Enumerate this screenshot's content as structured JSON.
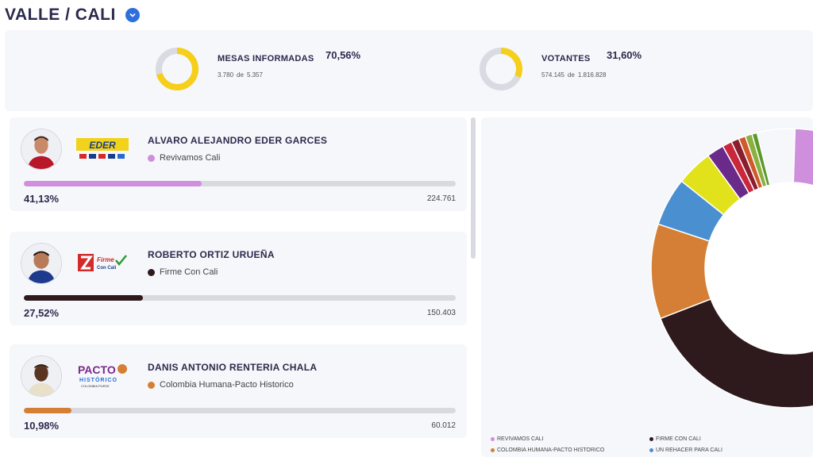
{
  "header": {
    "title": "VALLE / CALI"
  },
  "summary": {
    "mesas": {
      "label": "MESAS INFORMADAS",
      "pct": "70,56%",
      "reported": "3.780",
      "sep": "de",
      "total": "5.357",
      "fraction": 0.7056
    },
    "votantes": {
      "label": "VOTANTES",
      "pct": "31,60%",
      "reported": "574.145",
      "sep": "de",
      "total": "1.816.828",
      "fraction": 0.316
    }
  },
  "candidates": [
    {
      "name": "ALVARO ALEJANDRO EDER GARCES",
      "party": "Revivamos Cali",
      "pct": "41,13%",
      "votes": "224.761",
      "share": 0.4113,
      "color": "#cf8fdc",
      "logo": "eder-logo-icon"
    },
    {
      "name": "ROBERTO ORTIZ URUEÑA",
      "party": "Firme Con Cali",
      "pct": "27,52%",
      "votes": "150.403",
      "share": 0.2752,
      "color": "#2e1a1c",
      "logo": "firme-logo-icon"
    },
    {
      "name": "DANIS ANTONIO RENTERIA CHALA",
      "party": "Colombia Humana-Pacto Historico",
      "pct": "10,98%",
      "votes": "60.012",
      "share": 0.1098,
      "color": "#d47f35",
      "logo": "pacto-logo-icon"
    }
  ],
  "logos": {
    "eder": {
      "text": "EDER"
    },
    "firme": {
      "line1": "Firme",
      "line2": "Con Cali"
    },
    "pacto": {
      "line1": "PACTO",
      "line2": "HISTÓRICO",
      "line3": "COLOMBIA PUEDE"
    }
  },
  "chart_data": {
    "type": "pie",
    "variant": "donut",
    "series": [
      {
        "name": "REVIVAMOS CALI",
        "value": 41.13,
        "color": "#cf8fdc"
      },
      {
        "name": "FIRME CON CALI",
        "value": 27.52,
        "color": "#2e1a1c"
      },
      {
        "name": "COLOMBIA HUMANA-PACTO HISTORICO",
        "value": 10.98,
        "color": "#d47f35"
      },
      {
        "name": "UN REHACER PARA CALI",
        "value": 5.6,
        "color": "#4a8fd0"
      },
      {
        "name": "",
        "value": 4.2,
        "color": "#e2e21c"
      },
      {
        "name": "",
        "value": 2.0,
        "color": "#6a2a8a"
      },
      {
        "name": "",
        "value": 1.1,
        "color": "#c8283c"
      },
      {
        "name": "",
        "value": 0.9,
        "color": "#8a1e2e"
      },
      {
        "name": "",
        "value": 0.8,
        "color": "#d05a2a"
      },
      {
        "name": "",
        "value": 0.8,
        "color": "#8ab040"
      },
      {
        "name": "",
        "value": 0.6,
        "color": "#5a9a2a"
      },
      {
        "name": "",
        "value": 4.36,
        "color": "#f6f7fb"
      }
    ],
    "legend": [
      {
        "label": "REVIVAMOS CALI",
        "color": "#cf8fdc"
      },
      {
        "label": "FIRME CON CALI",
        "color": "#2e1a1c"
      },
      {
        "label": "COLOMBIA HUMANA-PACTO HISTORICO",
        "color": "#d47f35"
      },
      {
        "label": "UN REHACER PARA CALI",
        "color": "#4a8fd0"
      }
    ]
  }
}
